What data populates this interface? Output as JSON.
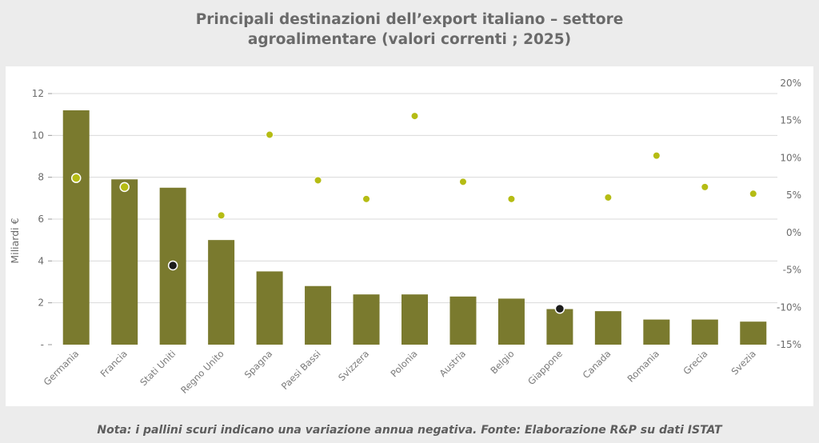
{
  "title": {
    "line1": "Principali destinazioni dell’export italiano – settore",
    "line2": "agroalimentare (valori correnti ; 2025)"
  },
  "note": "Nota: i pallini scuri indicano una variazione annua negativa. Fonte: Elaborazione R&P su dati ISTAT",
  "colors": {
    "bar": "#7a7a2e",
    "dot_positive": "#b5bc14",
    "dot_negative": "#1c1c1c",
    "grid": "#d9d9d9"
  },
  "chart_data": {
    "type": "bar",
    "categories": [
      "Germania",
      "Francia",
      "Stati Uniti",
      "Regno Unito",
      "Spagna",
      "Paesi Bassi",
      "Svizzera",
      "Polonia",
      "Austria",
      "Belgio",
      "Giappone",
      "Canada",
      "Romania",
      "Grecia",
      "Svezia"
    ],
    "series": [
      {
        "axis": "left",
        "kind": "bar",
        "values": [
          11.2,
          7.9,
          7.5,
          5.0,
          3.5,
          2.8,
          2.4,
          2.4,
          2.3,
          2.2,
          1.7,
          1.6,
          1.2,
          1.2,
          1.1
        ]
      },
      {
        "axis": "right",
        "kind": "scatter",
        "values": [
          7.3,
          6.1,
          -4.4,
          2.3,
          13.1,
          7.0,
          4.5,
          15.6,
          6.8,
          4.5,
          -10.2,
          4.7,
          10.3,
          6.1,
          5.2
        ]
      }
    ],
    "ylabel": "Miliardi €",
    "ylim": [
      0,
      12.5
    ],
    "y_ticks": [
      "-",
      "2",
      "4",
      "6",
      "8",
      "10",
      "12"
    ],
    "y2lim": [
      -15,
      20
    ],
    "y2_ticks": [
      "-15%",
      "-10%",
      "-5%",
      "0%",
      "5%",
      "10%",
      "15%",
      "20%"
    ],
    "grid": true
  }
}
